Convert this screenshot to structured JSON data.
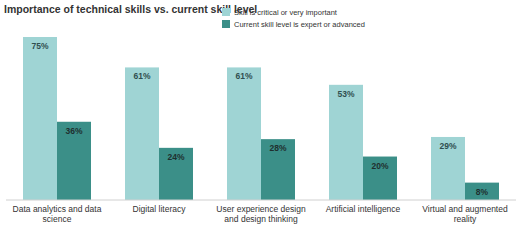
{
  "chart_data": {
    "type": "bar",
    "title": "Importance of technical skills vs. current skill level",
    "categories": [
      "Data analytics and data science",
      "Digital literacy",
      "User experience design and design thinking",
      "Artificial intelligence",
      "Virtual and augmented reality"
    ],
    "series": [
      {
        "name": "Skill is critical or very important",
        "color": "#9fd4d4",
        "values": [
          75,
          61,
          61,
          53,
          29
        ],
        "value_labels": [
          "75%",
          "61%",
          "61%",
          "53%",
          "29%"
        ]
      },
      {
        "name": "Current skill level is expert or advanced",
        "color": "#3b8f88",
        "values": [
          36,
          24,
          28,
          20,
          8
        ],
        "value_labels": [
          "36%",
          "24%",
          "28%",
          "20%",
          "8%"
        ]
      }
    ],
    "ylim": [
      0,
      75
    ],
    "data_labels": true,
    "tick_labels": "x",
    "legend": "top"
  }
}
